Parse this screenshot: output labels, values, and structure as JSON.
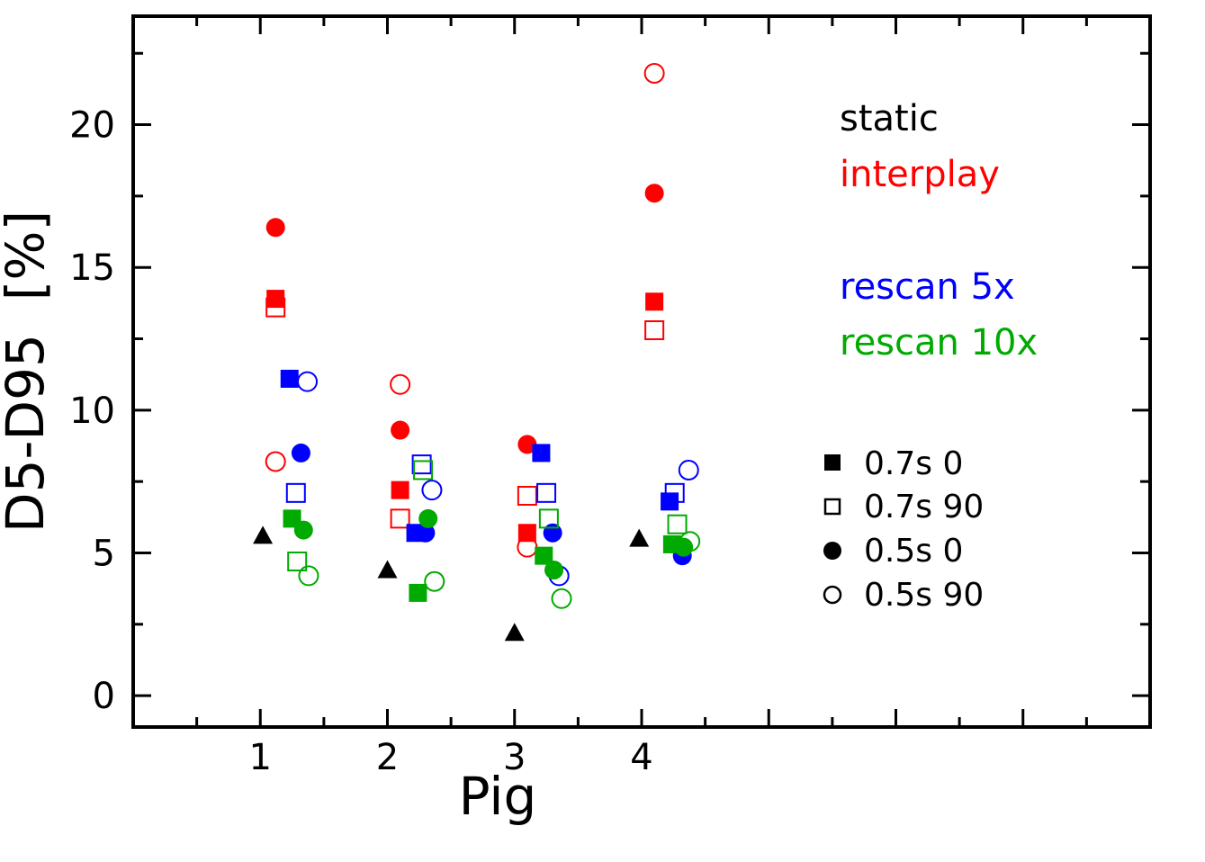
{
  "chart_data": {
    "type": "scatter",
    "xlabel": "Pig",
    "ylabel": "D5-D95  [%]",
    "xlim": [
      0,
      8
    ],
    "ylim": [
      -1.1,
      23.8
    ],
    "x_ticks": [
      1,
      2,
      3,
      4
    ],
    "y_ticks": [
      0,
      5,
      10,
      15,
      20
    ],
    "grid": false,
    "groups_legend": {
      "placement": "top-right",
      "entries": [
        {
          "label": "static",
          "color": "#000000"
        },
        {
          "label": "interplay",
          "color": "#ff0000"
        },
        {
          "label": "rescan 5x",
          "color": "#0000ff"
        },
        {
          "label": "rescan 10x",
          "color": "#00aa00"
        }
      ]
    },
    "markers_legend": {
      "placement": "right",
      "entries": [
        {
          "label": "0.7s 0",
          "marker": "square-filled"
        },
        {
          "label": "0.7s 90",
          "marker": "square-open"
        },
        {
          "label": "0.5s 0",
          "marker": "circle-filled"
        },
        {
          "label": "0.5s 90",
          "marker": "circle-open"
        }
      ]
    },
    "series": [
      {
        "group": "static",
        "marker": "triangle-filled",
        "color": "#000000",
        "points": [
          {
            "x": 1.02,
            "y": 5.6
          },
          {
            "x": 2.0,
            "y": 4.4
          },
          {
            "x": 3.0,
            "y": 2.2
          },
          {
            "x": 3.98,
            "y": 5.5
          }
        ]
      },
      {
        "group": "interplay",
        "marker": "square-filled",
        "color": "#ff0000",
        "points": [
          {
            "x": 1.12,
            "y": 13.9
          },
          {
            "x": 2.1,
            "y": 7.2
          },
          {
            "x": 3.1,
            "y": 5.7
          },
          {
            "x": 4.1,
            "y": 13.8
          }
        ]
      },
      {
        "group": "interplay",
        "marker": "square-open",
        "color": "#ff0000",
        "points": [
          {
            "x": 1.12,
            "y": 13.6
          },
          {
            "x": 2.1,
            "y": 6.2
          },
          {
            "x": 3.1,
            "y": 7.0
          },
          {
            "x": 4.1,
            "y": 12.8
          }
        ]
      },
      {
        "group": "interplay",
        "marker": "circle-filled",
        "color": "#ff0000",
        "points": [
          {
            "x": 1.12,
            "y": 16.4
          },
          {
            "x": 2.1,
            "y": 9.3
          },
          {
            "x": 3.1,
            "y": 8.8
          },
          {
            "x": 4.1,
            "y": 17.6
          }
        ]
      },
      {
        "group": "interplay",
        "marker": "circle-open",
        "color": "#ff0000",
        "points": [
          {
            "x": 1.12,
            "y": 8.2
          },
          {
            "x": 2.1,
            "y": 10.9
          },
          {
            "x": 3.1,
            "y": 5.2
          },
          {
            "x": 4.1,
            "y": 21.8
          }
        ]
      },
      {
        "group": "rescan 5x",
        "marker": "square-filled",
        "color": "#0000ff",
        "points": [
          {
            "x": 1.23,
            "y": 11.1
          },
          {
            "x": 2.22,
            "y": 5.7
          },
          {
            "x": 3.21,
            "y": 8.5
          },
          {
            "x": 4.22,
            "y": 6.8
          }
        ]
      },
      {
        "group": "rescan 5x",
        "marker": "square-open",
        "color": "#0000ff",
        "points": [
          {
            "x": 1.28,
            "y": 7.1
          },
          {
            "x": 2.27,
            "y": 8.1
          },
          {
            "x": 3.25,
            "y": 7.1
          },
          {
            "x": 4.26,
            "y": 7.1
          }
        ]
      },
      {
        "group": "rescan 5x",
        "marker": "circle-filled",
        "color": "#0000ff",
        "points": [
          {
            "x": 1.32,
            "y": 8.5
          },
          {
            "x": 2.3,
            "y": 5.7
          },
          {
            "x": 3.3,
            "y": 5.7
          },
          {
            "x": 4.32,
            "y": 4.9
          }
        ]
      },
      {
        "group": "rescan 5x",
        "marker": "circle-open",
        "color": "#0000ff",
        "points": [
          {
            "x": 1.37,
            "y": 11.0
          },
          {
            "x": 2.35,
            "y": 7.2
          },
          {
            "x": 3.35,
            "y": 4.2
          },
          {
            "x": 4.37,
            "y": 7.9
          }
        ]
      },
      {
        "group": "rescan 10x",
        "marker": "square-filled",
        "color": "#00aa00",
        "points": [
          {
            "x": 1.25,
            "y": 6.2
          },
          {
            "x": 2.24,
            "y": 3.6
          },
          {
            "x": 3.23,
            "y": 4.9
          },
          {
            "x": 4.24,
            "y": 5.3
          }
        ]
      },
      {
        "group": "rescan 10x",
        "marker": "square-open",
        "color": "#00aa00",
        "points": [
          {
            "x": 1.29,
            "y": 4.7
          },
          {
            "x": 2.28,
            "y": 7.9
          },
          {
            "x": 3.27,
            "y": 6.2
          },
          {
            "x": 4.28,
            "y": 6.0
          }
        ]
      },
      {
        "group": "rescan 10x",
        "marker": "circle-filled",
        "color": "#00aa00",
        "points": [
          {
            "x": 1.34,
            "y": 5.8
          },
          {
            "x": 2.32,
            "y": 6.2
          },
          {
            "x": 3.31,
            "y": 4.4
          },
          {
            "x": 4.33,
            "y": 5.2
          }
        ]
      },
      {
        "group": "rescan 10x",
        "marker": "circle-open",
        "color": "#00aa00",
        "points": [
          {
            "x": 1.38,
            "y": 4.2
          },
          {
            "x": 2.37,
            "y": 4.0
          },
          {
            "x": 3.37,
            "y": 3.4
          },
          {
            "x": 4.38,
            "y": 5.4
          }
        ]
      }
    ]
  }
}
